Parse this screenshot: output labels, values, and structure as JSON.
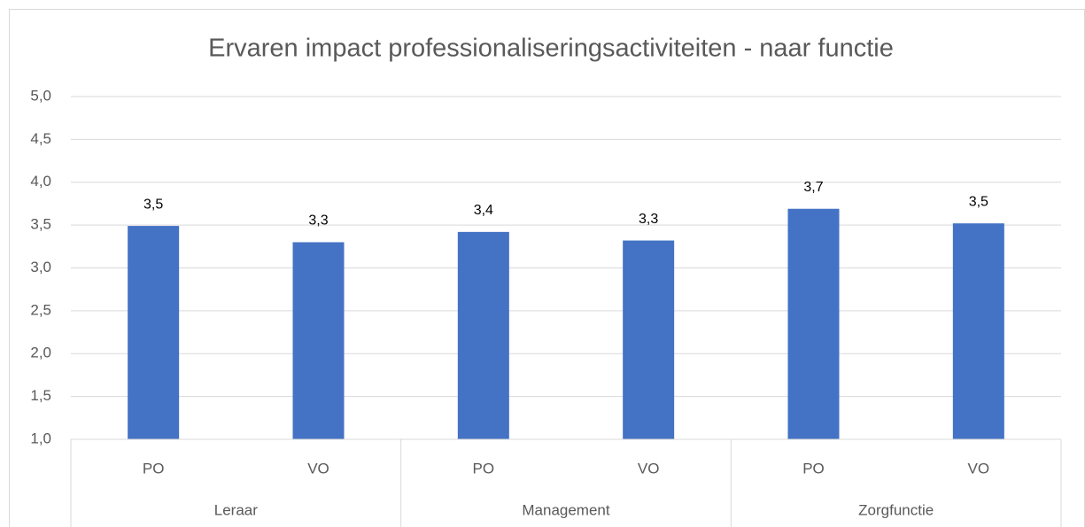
{
  "chart_data": {
    "type": "bar",
    "title": "Ervaren impact professionaliseringsactiviteiten - naar functie",
    "categories": [
      "PO",
      "VO",
      "PO",
      "VO",
      "PO",
      "VO"
    ],
    "groups": [
      "Leraar",
      "Management",
      "Zorgfunctie"
    ],
    "values": [
      3.49,
      3.3,
      3.42,
      3.32,
      3.69,
      3.52
    ],
    "value_labels": [
      "3,5",
      "3,3",
      "3,4",
      "3,3",
      "3,7",
      "3,5"
    ],
    "color": "#4472c4",
    "ylim": [
      1,
      5
    ],
    "yticks": [
      {
        "value": 1,
        "label": "1,0"
      },
      {
        "value": 1.5,
        "label": "1,5"
      },
      {
        "value": 2,
        "label": "2,0"
      },
      {
        "value": 2.5,
        "label": "2,5"
      },
      {
        "value": 3,
        "label": "3,0"
      },
      {
        "value": 3.5,
        "label": "3,5"
      },
      {
        "value": 4,
        "label": "4,0"
      },
      {
        "value": 4.5,
        "label": "4,5"
      },
      {
        "value": 5,
        "label": "5,0"
      }
    ],
    "grid": true
  }
}
